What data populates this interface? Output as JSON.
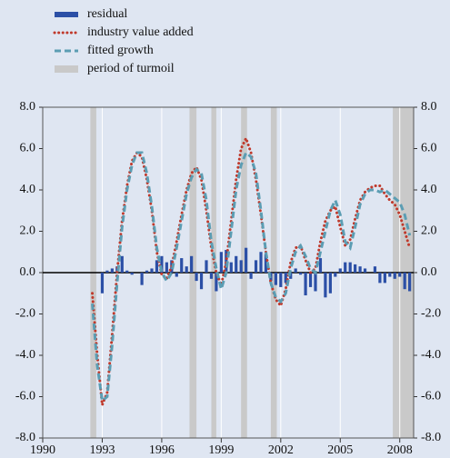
{
  "chart_data": {
    "type": "combo",
    "xlim": [
      1990,
      2008.7
    ],
    "xticks": [
      1990,
      1993,
      1996,
      1999,
      2002,
      2005,
      2008
    ],
    "ylim": [
      -8,
      8
    ],
    "yticks": [
      {
        "value": -8,
        "label": "-8.0"
      },
      {
        "value": -6,
        "label": "-6.0"
      },
      {
        "value": -4,
        "label": "-4.0"
      },
      {
        "value": -2,
        "label": "-2.0"
      },
      {
        "value": 0,
        "label": "0.0"
      },
      {
        "value": 2,
        "label": "2.0"
      },
      {
        "value": 4,
        "label": "4.0"
      },
      {
        "value": 6,
        "label": "6.0"
      },
      {
        "value": 8,
        "label": "8.0"
      }
    ],
    "grid": true,
    "x": [
      1992.5,
      1992.75,
      1993.0,
      1993.25,
      1993.5,
      1993.75,
      1994.0,
      1994.25,
      1994.5,
      1994.75,
      1995.0,
      1995.25,
      1995.5,
      1995.75,
      1996.0,
      1996.25,
      1996.5,
      1996.75,
      1997.0,
      1997.25,
      1997.5,
      1997.75,
      1998.0,
      1998.25,
      1998.5,
      1998.75,
      1999.0,
      1999.25,
      1999.5,
      1999.75,
      2000.0,
      2000.25,
      2000.5,
      2000.75,
      2001.0,
      2001.25,
      2001.5,
      2001.75,
      2002.0,
      2002.25,
      2002.5,
      2002.75,
      2003.0,
      2003.25,
      2003.5,
      2003.75,
      2004.0,
      2004.25,
      2004.5,
      2004.75,
      2005.0,
      2005.25,
      2005.5,
      2005.75,
      2006.0,
      2006.25,
      2006.5,
      2006.75,
      2007.0,
      2007.25,
      2007.5,
      2007.75,
      2008.0,
      2008.25,
      2008.5
    ],
    "series": [
      {
        "name": "residual",
        "type": "bar",
        "color": "#2b4fa6",
        "values": [
          0,
          0,
          -1.0,
          0.1,
          0.2,
          0.3,
          0.8,
          0.1,
          -0.1,
          0,
          -0.6,
          0.1,
          0.2,
          0.6,
          0.8,
          0.5,
          0.6,
          -0.2,
          0.7,
          0.3,
          0.8,
          -0.4,
          -0.8,
          0.6,
          -0.3,
          -0.9,
          1.0,
          1.1,
          0.5,
          0.8,
          0.6,
          1.2,
          -0.3,
          0.6,
          1.0,
          0.9,
          -0.4,
          -0.6,
          -0.7,
          -0.5,
          -0.3,
          0.2,
          -0.1,
          -1.1,
          -0.7,
          -0.9,
          0.7,
          -1.2,
          -1.0,
          -0.2,
          0.2,
          0.5,
          0.5,
          0.4,
          0.3,
          0.2,
          0,
          0.3,
          -0.5,
          -0.5,
          -0.2,
          -0.3,
          -0.2,
          -0.8,
          -0.9
        ]
      },
      {
        "name": "industry value added",
        "type": "line",
        "style": "dotted",
        "color": "#c0392b",
        "values": [
          -1.0,
          -4.0,
          -6.4,
          -5.8,
          -3.0,
          0,
          2.5,
          4.2,
          5.4,
          5.8,
          5.6,
          4.5,
          3.0,
          1.0,
          -0.1,
          -0.3,
          0.3,
          1.5,
          2.8,
          4.0,
          4.8,
          5.1,
          4.5,
          3.0,
          1.2,
          0,
          -0.6,
          0.5,
          2.5,
          4.5,
          6.0,
          6.5,
          5.8,
          4.5,
          2.8,
          1.0,
          -0.5,
          -1.3,
          -1.6,
          -0.8,
          0.5,
          1.2,
          1.3,
          0.6,
          0,
          0.2,
          1.5,
          2.5,
          3.0,
          3.2,
          2.2,
          1.3,
          1.6,
          2.6,
          3.5,
          3.9,
          4.1,
          4.2,
          4.2,
          3.8,
          3.5,
          3.3,
          2.8,
          2.0,
          1.2
        ]
      },
      {
        "name": "fitted growth",
        "type": "line",
        "style": "dashed",
        "color": "#5b9db3",
        "values": [
          -1.5,
          -4.5,
          -6.2,
          -6.0,
          -3.5,
          -0.5,
          2.2,
          4.0,
          5.2,
          5.8,
          5.8,
          4.8,
          3.2,
          1.2,
          0,
          -0.4,
          0,
          1.2,
          2.5,
          3.8,
          4.6,
          5.0,
          4.8,
          3.5,
          1.5,
          0.2,
          -0.8,
          0,
          2.0,
          4.0,
          5.2,
          5.8,
          5.6,
          4.8,
          3.0,
          1.0,
          -0.5,
          -1.2,
          -1.4,
          -1.0,
          0.2,
          1.0,
          1.3,
          0.8,
          0.2,
          0,
          1.0,
          2.0,
          3.0,
          3.5,
          2.8,
          1.5,
          1.2,
          2.2,
          3.3,
          3.8,
          4.0,
          4.0,
          3.9,
          4.0,
          3.8,
          3.6,
          3.4,
          2.8,
          1.8
        ]
      }
    ],
    "turmoil": {
      "name": "period of turmoil",
      "color": "#c9c9c9",
      "periods": [
        [
          1992.4,
          1992.7
        ],
        [
          1997.4,
          1997.75
        ],
        [
          1998.5,
          1998.75
        ],
        [
          2000.0,
          2000.3
        ],
        [
          2001.5,
          2001.8
        ],
        [
          2007.65,
          2008.7
        ]
      ]
    }
  }
}
